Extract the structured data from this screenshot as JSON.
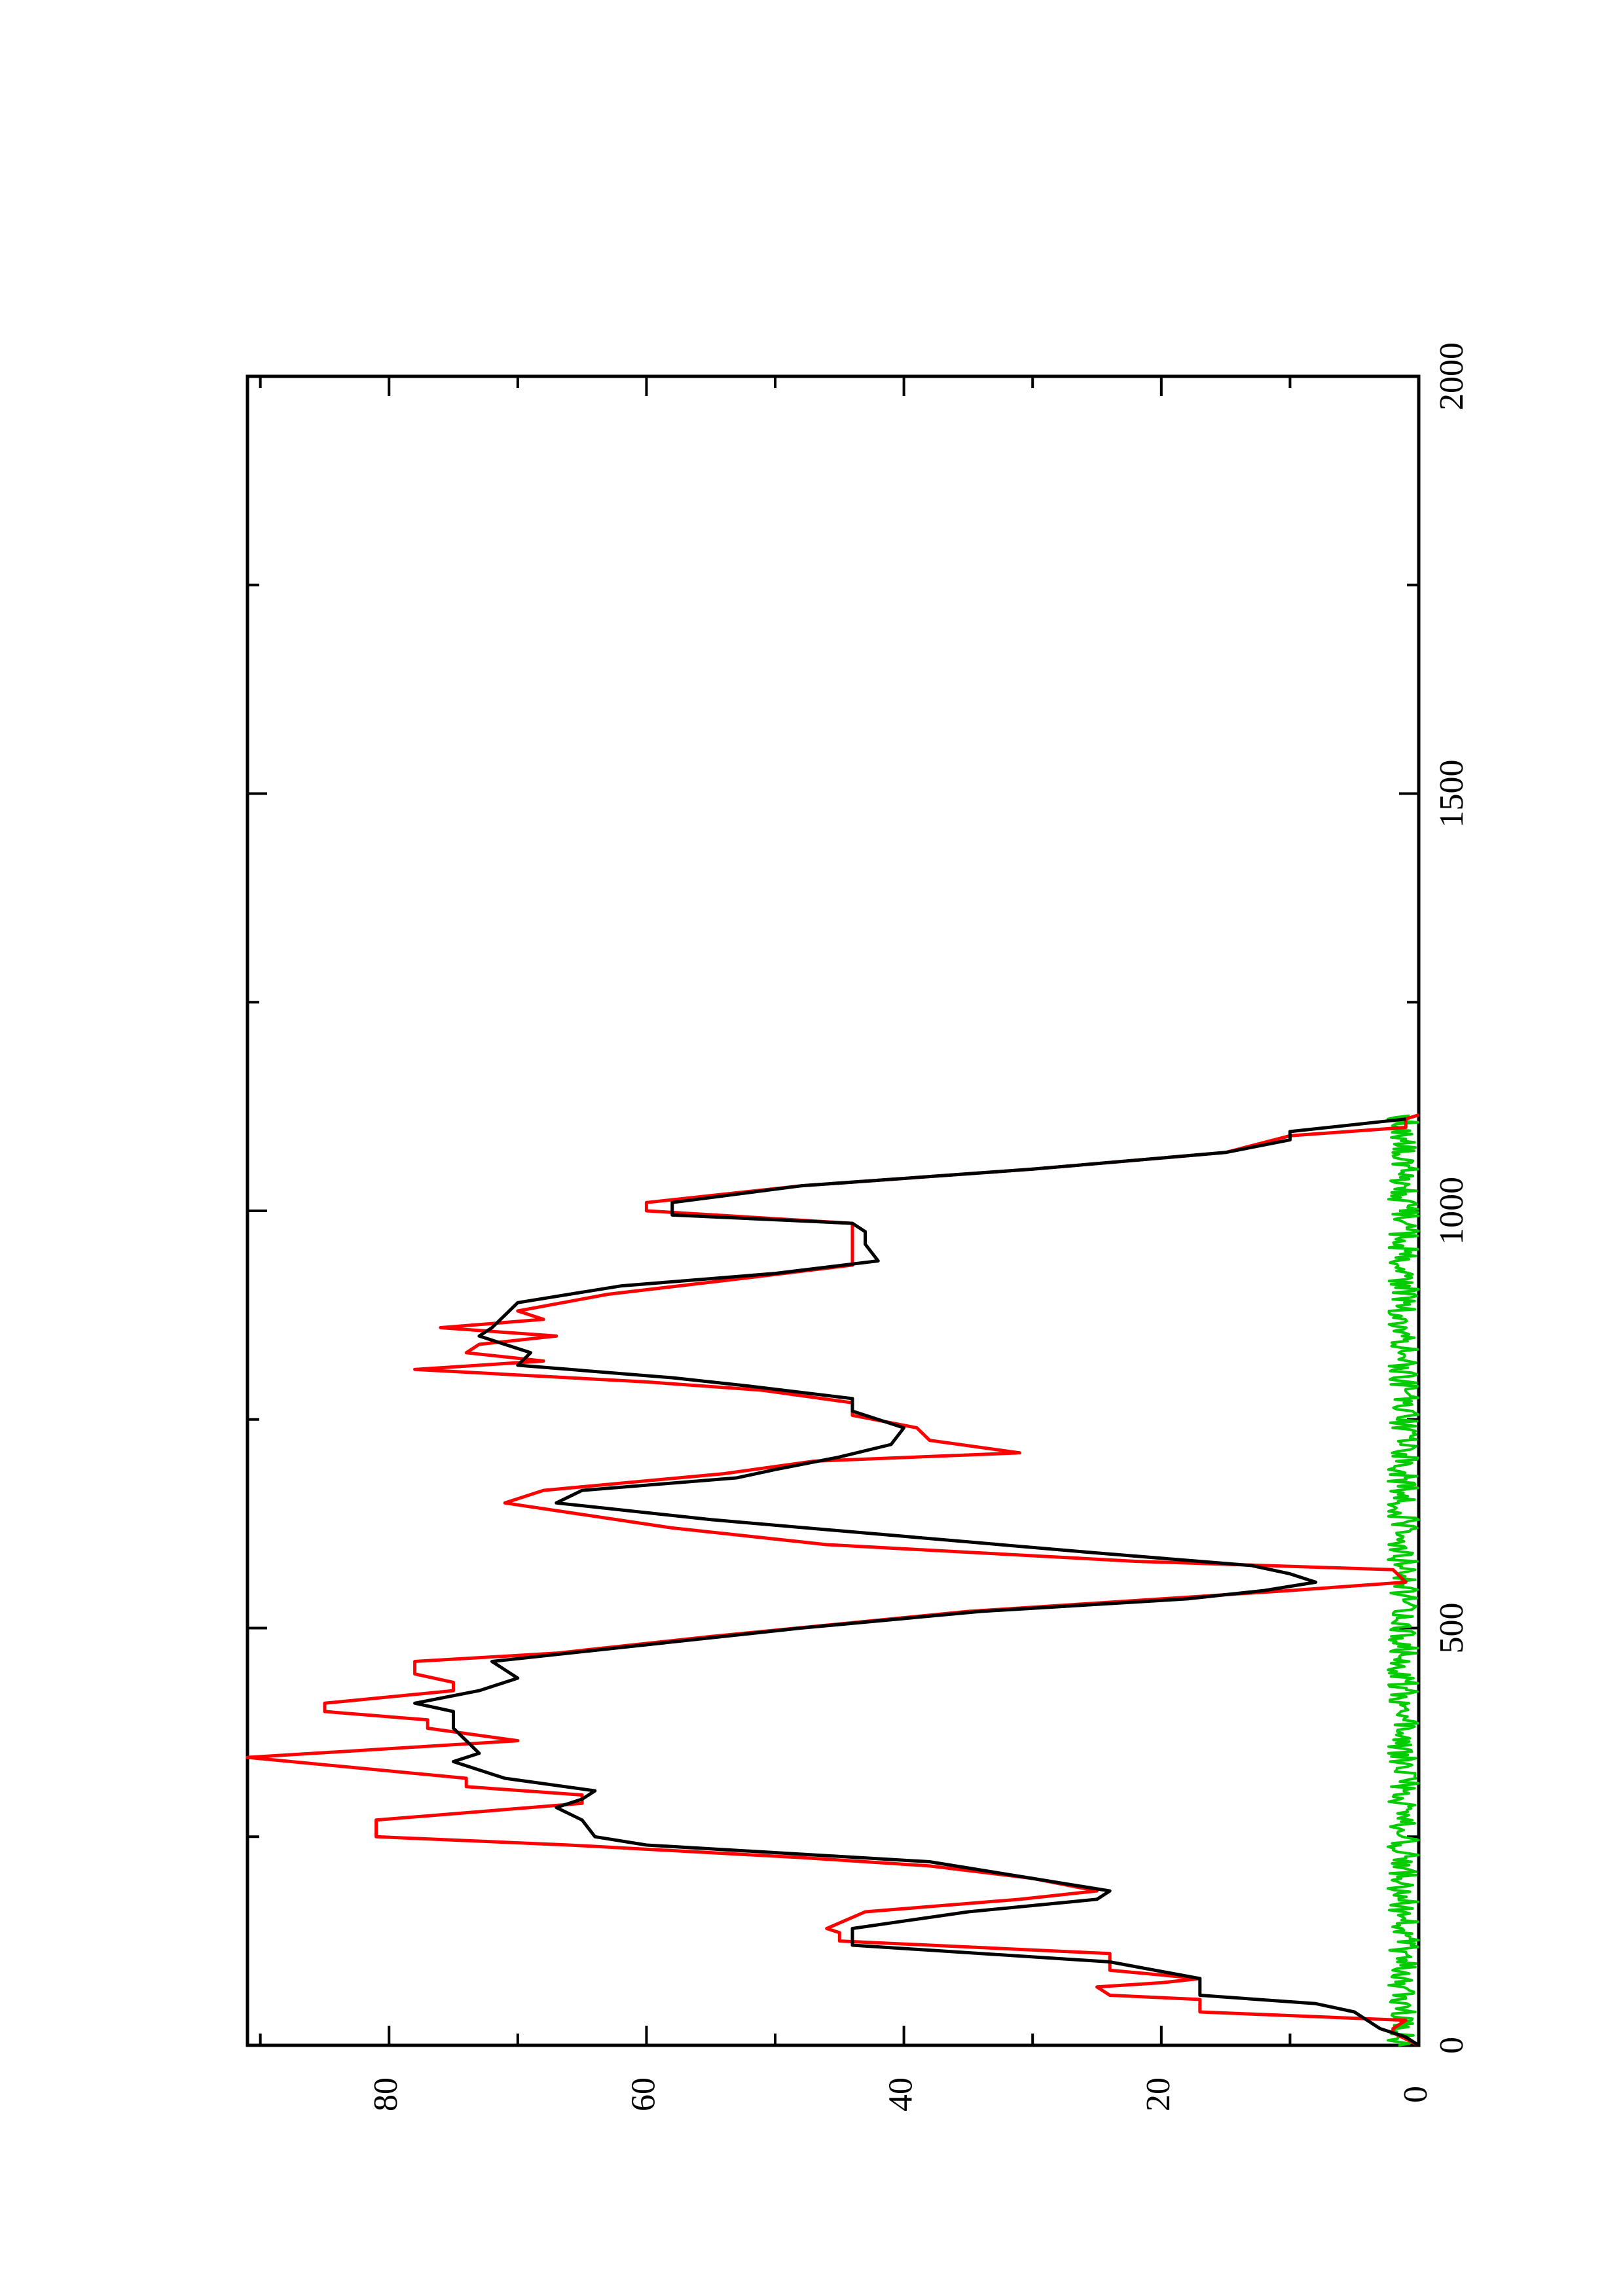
{
  "chart_data": {
    "type": "line",
    "title": "",
    "xlabel": "",
    "ylabel": "",
    "orientation": "rotated 90 degrees counter-clockwise",
    "xlim": [
      0,
      2000
    ],
    "ylim": [
      0,
      91
    ],
    "x_ticks": [
      0,
      500,
      1000,
      1500,
      2000
    ],
    "y_ticks": [
      0,
      20,
      40,
      60,
      80
    ],
    "grid": false,
    "legend": "none",
    "series": [
      {
        "color": "#ff0000",
        "points": [
          [
            0,
            0
          ],
          [
            15,
            2
          ],
          [
            20,
            2
          ],
          [
            30,
            1
          ],
          [
            40,
            17
          ],
          [
            55,
            17
          ],
          [
            60,
            24
          ],
          [
            70,
            25
          ],
          [
            75,
            20
          ],
          [
            80,
            17
          ],
          [
            90,
            24
          ],
          [
            110,
            24
          ],
          [
            125,
            45
          ],
          [
            135,
            45
          ],
          [
            140,
            46
          ],
          [
            160,
            43
          ],
          [
            175,
            31
          ],
          [
            185,
            25
          ],
          [
            200,
            30
          ],
          [
            215,
            38
          ],
          [
            225,
            48
          ],
          [
            240,
            66
          ],
          [
            250,
            81
          ],
          [
            270,
            81
          ],
          [
            285,
            69
          ],
          [
            290,
            65
          ],
          [
            300,
            65
          ],
          [
            310,
            74
          ],
          [
            320,
            74
          ],
          [
            345,
            91
          ],
          [
            365,
            70
          ],
          [
            380,
            77
          ],
          [
            390,
            77
          ],
          [
            400,
            85
          ],
          [
            410,
            85
          ],
          [
            425,
            75
          ],
          [
            435,
            75
          ],
          [
            445,
            78
          ],
          [
            460,
            78
          ],
          [
            470,
            67
          ],
          [
            490,
            55
          ],
          [
            520,
            35
          ],
          [
            545,
            10
          ],
          [
            555,
            1
          ],
          [
            570,
            2
          ],
          [
            580,
            22
          ],
          [
            600,
            46
          ],
          [
            620,
            58
          ],
          [
            650,
            71
          ],
          [
            665,
            68
          ],
          [
            685,
            54
          ],
          [
            700,
            47
          ],
          [
            710,
            31
          ],
          [
            725,
            38
          ],
          [
            740,
            39
          ],
          [
            755,
            44
          ],
          [
            770,
            44
          ],
          [
            785,
            51
          ],
          [
            795,
            60
          ],
          [
            810,
            78
          ],
          [
            820,
            68
          ],
          [
            830,
            74
          ],
          [
            840,
            73
          ],
          [
            850,
            67
          ],
          [
            860,
            76
          ],
          [
            870,
            68
          ],
          [
            880,
            70
          ],
          [
            900,
            63
          ],
          [
            920,
            52
          ],
          [
            935,
            44
          ],
          [
            960,
            44
          ],
          [
            980,
            44
          ],
          [
            985,
            44
          ],
          [
            1000,
            60
          ],
          [
            1010,
            60
          ],
          [
            1030,
            48
          ],
          [
            1050,
            30
          ],
          [
            1070,
            15
          ],
          [
            1090,
            10
          ],
          [
            1100,
            1
          ],
          [
            1110,
            1
          ],
          [
            1115,
            0
          ]
        ]
      },
      {
        "color": "#000000",
        "points": [
          [
            0,
            0
          ],
          [
            10,
            1
          ],
          [
            20,
            3
          ],
          [
            30,
            4
          ],
          [
            40,
            5
          ],
          [
            50,
            8
          ],
          [
            60,
            17
          ],
          [
            80,
            17
          ],
          [
            100,
            24
          ],
          [
            120,
            44
          ],
          [
            140,
            44
          ],
          [
            160,
            35
          ],
          [
            175,
            25
          ],
          [
            185,
            24
          ],
          [
            200,
            30
          ],
          [
            220,
            38
          ],
          [
            240,
            60
          ],
          [
            250,
            64
          ],
          [
            270,
            65
          ],
          [
            285,
            67
          ],
          [
            295,
            65
          ],
          [
            305,
            64
          ],
          [
            320,
            71
          ],
          [
            340,
            75
          ],
          [
            350,
            73
          ],
          [
            365,
            74
          ],
          [
            380,
            75
          ],
          [
            400,
            75
          ],
          [
            410,
            78
          ],
          [
            425,
            73
          ],
          [
            440,
            70
          ],
          [
            460,
            72
          ],
          [
            480,
            60
          ],
          [
            500,
            48
          ],
          [
            520,
            34
          ],
          [
            535,
            18
          ],
          [
            545,
            12
          ],
          [
            555,
            8
          ],
          [
            565,
            10
          ],
          [
            575,
            13
          ],
          [
            590,
            25
          ],
          [
            610,
            40
          ],
          [
            630,
            55
          ],
          [
            650,
            67
          ],
          [
            665,
            65
          ],
          [
            680,
            53
          ],
          [
            690,
            50
          ],
          [
            705,
            45
          ],
          [
            720,
            41
          ],
          [
            740,
            40
          ],
          [
            760,
            44
          ],
          [
            775,
            44
          ],
          [
            790,
            52
          ],
          [
            800,
            58
          ],
          [
            815,
            70
          ],
          [
            830,
            69
          ],
          [
            850,
            73
          ],
          [
            860,
            72
          ],
          [
            875,
            71
          ],
          [
            890,
            70
          ],
          [
            910,
            62
          ],
          [
            925,
            50
          ],
          [
            940,
            42
          ],
          [
            960,
            43
          ],
          [
            975,
            43
          ],
          [
            985,
            44
          ],
          [
            995,
            58
          ],
          [
            1010,
            58
          ],
          [
            1030,
            48
          ],
          [
            1050,
            30
          ],
          [
            1070,
            15
          ],
          [
            1085,
            10
          ],
          [
            1095,
            10
          ],
          [
            1110,
            1
          ]
        ]
      },
      {
        "color": "#00cc00",
        "type": "noise",
        "amplitude": 1.2,
        "x_range": [
          0,
          1115
        ]
      }
    ]
  }
}
